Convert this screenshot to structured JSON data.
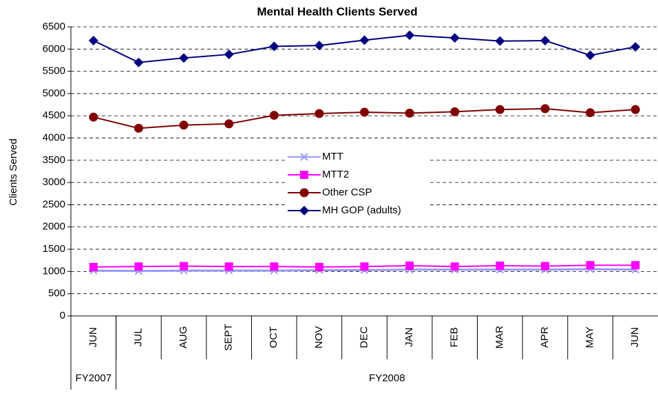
{
  "chart_data": {
    "type": "line",
    "title": "Mental Health Clients Served",
    "y_label": "Clients Served",
    "categories": [
      "JUN",
      "JUL",
      "AUG",
      "SEPT",
      "OCT",
      "NOV",
      "DEC",
      "JAN",
      "FEB",
      "MAR",
      "APR",
      "MAY",
      "JUN"
    ],
    "category_groups": [
      {
        "label": "FY2007",
        "span": 1
      },
      {
        "label": "FY2008",
        "span": 12
      }
    ],
    "series": [
      {
        "name": "MTT",
        "color": "#9999ff",
        "marker": "x",
        "values": [
          1020,
          1010,
          1020,
          1020,
          1020,
          1030,
          1030,
          1040,
          1040,
          1040,
          1040,
          1050,
          1040
        ]
      },
      {
        "name": "MTT2",
        "color": "#ff00ff",
        "marker": "square",
        "values": [
          1100,
          1110,
          1120,
          1110,
          1110,
          1100,
          1110,
          1130,
          1110,
          1130,
          1120,
          1140,
          1140
        ]
      },
      {
        "name": "Other CSP",
        "color": "#800000",
        "marker": "circle",
        "values": [
          4470,
          4220,
          4290,
          4320,
          4510,
          4550,
          4580,
          4560,
          4590,
          4640,
          4660,
          4570,
          4640
        ]
      },
      {
        "name": "MH GOP (adults)",
        "color": "#000080",
        "marker": "diamond",
        "values": [
          6190,
          5700,
          5800,
          5880,
          6060,
          6080,
          6200,
          6310,
          6250,
          6180,
          6190,
          5860,
          6050
        ]
      }
    ],
    "ylim": [
      0,
      6500
    ],
    "yticks": [
      0,
      500,
      1000,
      1500,
      2000,
      2500,
      3000,
      3500,
      4000,
      4500,
      5000,
      5500,
      6000,
      6500
    ],
    "grid": true,
    "legend": "center"
  }
}
